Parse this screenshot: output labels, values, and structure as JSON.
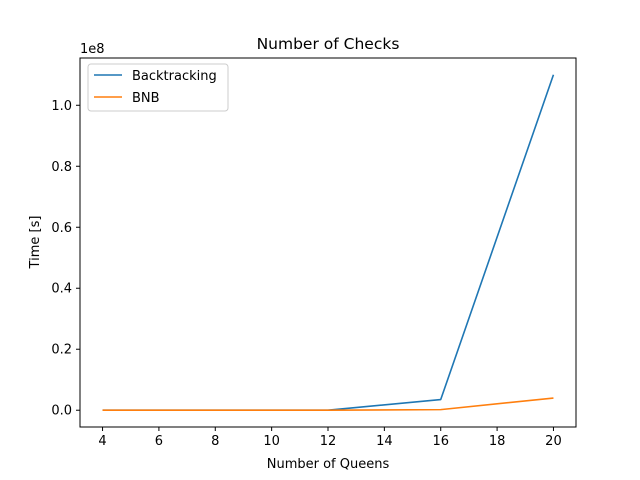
{
  "chart_data": {
    "type": "line",
    "title": "Number of Checks",
    "xlabel": "Number of Queens",
    "ylabel": "Time [s]",
    "y_offset_label": "1e8",
    "x": [
      4,
      8,
      12,
      16,
      20
    ],
    "xlim": [
      3.2,
      20.8
    ],
    "ylim": [
      -0.055,
      1.155
    ],
    "xticks": [
      4,
      6,
      8,
      10,
      12,
      14,
      16,
      18,
      20
    ],
    "yticks": [
      0.0,
      0.2,
      0.4,
      0.6,
      0.8,
      1.0
    ],
    "ytick_labels": [
      "0.0",
      "0.2",
      "0.4",
      "0.6",
      "0.8",
      "1.0"
    ],
    "grid": false,
    "legend_position": "upper-left",
    "series": [
      {
        "name": "Backtracking",
        "color": "#1f77b4",
        "values": [
          0.0,
          0.0,
          0.0,
          0.035,
          1.1
        ]
      },
      {
        "name": "BNB",
        "color": "#ff7f0e",
        "values": [
          0.0,
          0.0,
          0.0,
          0.002,
          0.04
        ]
      }
    ]
  }
}
